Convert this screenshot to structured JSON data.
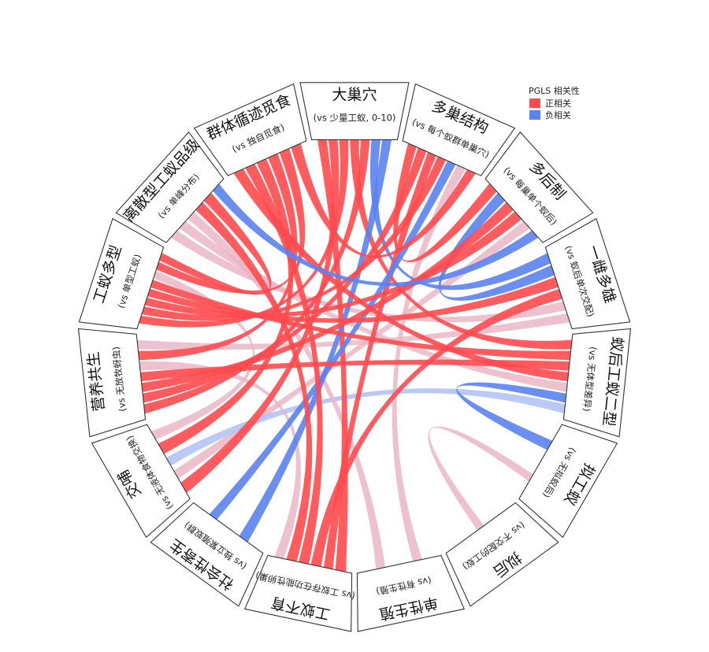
{
  "legend": {
    "title": "PGLS 相关性",
    "positive": {
      "label": "正相关",
      "color": "#ff4a4f"
    },
    "negative": {
      "label": "负相关",
      "color": "#5b83f0"
    },
    "weak_positive_color": "#eab6c6",
    "weak_negative_color": "#aebff4"
  },
  "segments": [
    {
      "id": "big-nest",
      "title": "大巢穴",
      "sub": "(vs 少量工蚁, 0-10)"
    },
    {
      "id": "polydomy",
      "title": "多巢结构",
      "sub": "(vs 每个蚁群单巢穴)"
    },
    {
      "id": "polygyny",
      "title": "多后制",
      "sub": "(vs 每巢单个蚁后)"
    },
    {
      "id": "polyandry",
      "title": "一雌多雄",
      "sub": "(vs 蚁后单次交配)"
    },
    {
      "id": "queen-worker-dimorphism",
      "title": "蚁后工蚁二型",
      "sub": "(vs 无体型差异)"
    },
    {
      "id": "gamergates",
      "title": "拟工蚁",
      "sub": "(vs 无拟蚁后)"
    },
    {
      "id": "ergatoid-queens",
      "title": "拟后",
      "sub": "(vs 不交配的工蚁)"
    },
    {
      "id": "sexual-reproduction",
      "title": "单性生殖",
      "sub": "(vs 有性生殖)"
    },
    {
      "id": "worker-sterility",
      "title": "工蚁不育",
      "sub": "(vs 工蚁存在功能性卵巢)"
    },
    {
      "id": "social-parasitism",
      "title": "社会性寄生",
      "sub": "(vs 独立繁殖蚁群)"
    },
    {
      "id": "trophallaxis",
      "title": "交哺",
      "sub": "(vs 无液体食物交换)"
    },
    {
      "id": "trophobiosis",
      "title": "营养共生",
      "sub": "(vs 无放牧蚜虫)"
    },
    {
      "id": "worker-polymorphism",
      "title": "工蚁多型",
      "sub": "(vs 单型工蚁)"
    },
    {
      "id": "discrete-castes",
      "title": "离散型工蚁品级",
      "sub": "(vs 单峰分布)"
    },
    {
      "id": "group-foraging",
      "title": "群体循迹觅食",
      "sub": "(vs 独自觅食)"
    }
  ],
  "links": [
    {
      "from": "big-nest",
      "to": "worker-sterility",
      "sign": "positive",
      "strength": 0.9
    },
    {
      "from": "big-nest",
      "to": "trophallaxis",
      "sign": "positive",
      "strength": 0.6
    },
    {
      "from": "big-nest",
      "to": "worker-polymorphism",
      "sign": "positive",
      "strength": 0.7
    },
    {
      "from": "big-nest",
      "to": "queen-worker-dimorphism",
      "sign": "positive",
      "strength": 0.8
    },
    {
      "from": "big-nest",
      "to": "trophobiosis",
      "sign": "positive",
      "strength": 0.6
    },
    {
      "from": "big-nest",
      "to": "polyandry",
      "sign": "negative",
      "strength": 0.5
    },
    {
      "from": "big-nest",
      "to": "social-parasitism",
      "sign": "negative",
      "strength": 0.5
    },
    {
      "from": "polydomy",
      "to": "polygyny",
      "sign": "positive",
      "strength": 0.6
    },
    {
      "from": "polydomy",
      "to": "trophobiosis",
      "sign": "positive",
      "strength": 0.5
    },
    {
      "from": "polydomy",
      "to": "worker-sterility",
      "sign": "positive",
      "strength": 0.4
    },
    {
      "from": "polydomy",
      "to": "worker-polymorphism",
      "sign": "positive",
      "strength": 0.4
    },
    {
      "from": "polydomy",
      "to": "social-parasitism",
      "sign": "negative",
      "strength": 0.4
    },
    {
      "from": "polydomy",
      "to": "sexual-reproduction",
      "sign": "weak_positive",
      "strength": 0.4
    },
    {
      "from": "polygyny",
      "to": "polyandry",
      "sign": "negative",
      "strength": 0.5
    },
    {
      "from": "polygyny",
      "to": "trophobiosis",
      "sign": "positive",
      "strength": 0.5
    },
    {
      "from": "polygyny",
      "to": "worker-polymorphism",
      "sign": "positive",
      "strength": 0.5
    },
    {
      "from": "polygyny",
      "to": "trophallaxis",
      "sign": "weak_positive",
      "strength": 0.4
    },
    {
      "from": "polyandry",
      "to": "worker-polymorphism",
      "sign": "positive",
      "strength": 0.6
    },
    {
      "from": "polyandry",
      "to": "worker-sterility",
      "sign": "positive",
      "strength": 0.5
    },
    {
      "from": "polyandry",
      "to": "discrete-castes",
      "sign": "weak_positive",
      "strength": 0.4
    },
    {
      "from": "queen-worker-dimorphism",
      "to": "worker-polymorphism",
      "sign": "positive",
      "strength": 0.7
    },
    {
      "from": "queen-worker-dimorphism",
      "to": "trophobiosis",
      "sign": "positive",
      "strength": 0.6
    },
    {
      "from": "queen-worker-dimorphism",
      "to": "group-foraging",
      "sign": "positive",
      "strength": 0.5
    },
    {
      "from": "queen-worker-dimorphism",
      "to": "discrete-castes",
      "sign": "weak_positive",
      "strength": 0.4
    },
    {
      "from": "queen-worker-dimorphism",
      "to": "gamergates",
      "sign": "negative",
      "strength": 0.5
    },
    {
      "from": "queen-worker-dimorphism",
      "to": "trophallaxis",
      "sign": "weak_negative",
      "strength": 0.4
    },
    {
      "from": "gamergates",
      "to": "ergatoid-queens",
      "sign": "weak_positive",
      "strength": 0.3
    },
    {
      "from": "sexual-reproduction",
      "to": "discrete-castes",
      "sign": "weak_positive",
      "strength": 0.4
    },
    {
      "from": "worker-sterility",
      "to": "group-foraging",
      "sign": "positive",
      "strength": 0.5
    },
    {
      "from": "worker-sterility",
      "to": "discrete-castes",
      "sign": "positive",
      "strength": 0.5
    },
    {
      "from": "worker-sterility",
      "to": "trophobiosis",
      "sign": "weak_positive",
      "strength": 0.4
    },
    {
      "from": "trophallaxis",
      "to": "group-foraging",
      "sign": "positive",
      "strength": 0.6
    },
    {
      "from": "trophallaxis",
      "to": "worker-polymorphism",
      "sign": "weak_positive",
      "strength": 0.4
    },
    {
      "from": "trophobiosis",
      "to": "group-foraging",
      "sign": "positive",
      "strength": 0.6
    },
    {
      "from": "trophobiosis",
      "to": "polyandry",
      "sign": "weak_positive",
      "strength": 0.4
    },
    {
      "from": "worker-polymorphism",
      "to": "group-foraging",
      "sign": "positive",
      "strength": 0.7
    },
    {
      "from": "worker-polymorphism",
      "to": "discrete-castes",
      "sign": "positive",
      "strength": 0.6
    },
    {
      "from": "discrete-castes",
      "to": "polygyny",
      "sign": "negative",
      "strength": 0.4
    },
    {
      "from": "group-foraging",
      "to": "polydomy",
      "sign": "positive",
      "strength": 0.5
    }
  ]
}
